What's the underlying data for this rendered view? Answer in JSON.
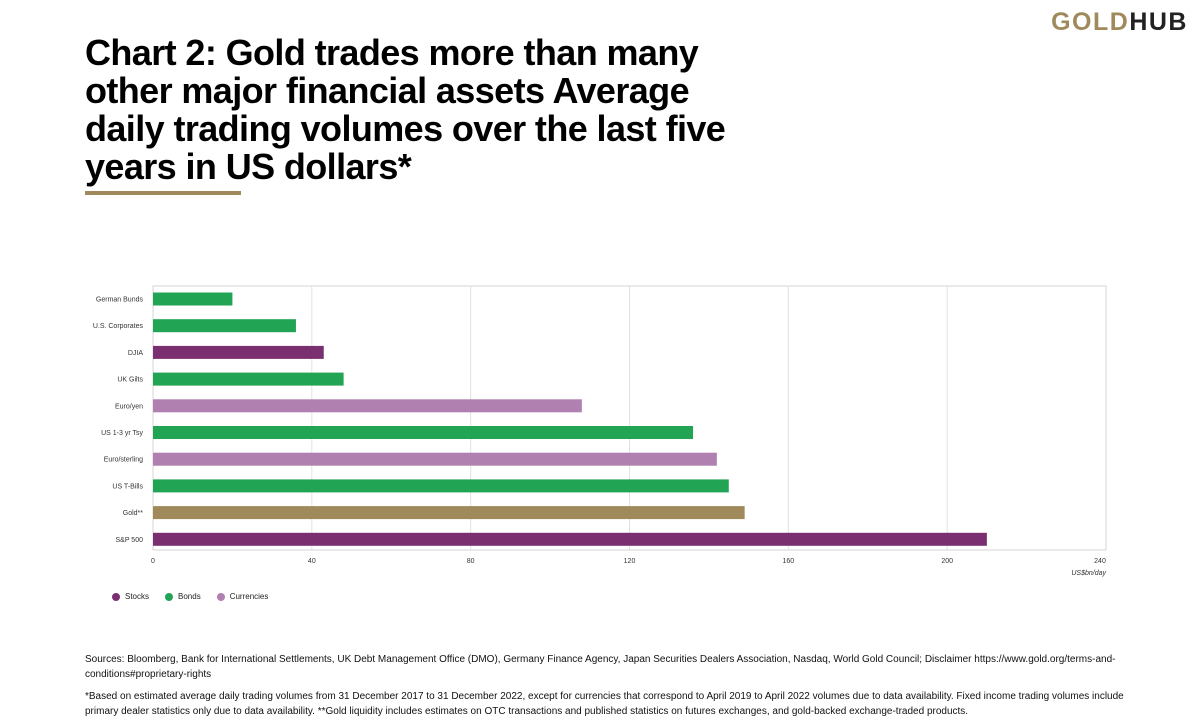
{
  "logo": {
    "gold": "GOLD",
    "hub": "HUB"
  },
  "title": "Chart 2: Gold trades more than many other major financial assets Average daily trading volumes over the last five years in US dollars*",
  "colors": {
    "Stocks": "#7a3070",
    "Bonds": "#22a455",
    "Currencies": "#b080b0",
    "Gold": "#a08a5c"
  },
  "legend": [
    {
      "label": "Stocks",
      "key": "Stocks"
    },
    {
      "label": "Bonds",
      "key": "Bonds"
    },
    {
      "label": "Currencies",
      "key": "Currencies"
    }
  ],
  "chart_data": {
    "type": "bar",
    "orientation": "horizontal",
    "categories": [
      "German Bunds",
      "U.S. Corporates",
      "DJIA",
      "UK Gilts",
      "Euro/yen",
      "US 1-3 yr Tsy",
      "Euro/sterling",
      "US T-Bills",
      "Gold**",
      "S&P 500"
    ],
    "values": [
      20,
      36,
      43,
      48,
      108,
      136,
      142,
      145,
      149,
      210
    ],
    "groups": [
      "Bonds",
      "Bonds",
      "Stocks",
      "Bonds",
      "Currencies",
      "Bonds",
      "Currencies",
      "Bonds",
      "Gold",
      "Stocks"
    ],
    "xlim": [
      0,
      240
    ],
    "xticks": [
      0,
      40,
      80,
      120,
      160,
      200,
      240
    ],
    "xlabel": "US$bn/day",
    "grid": "vertical",
    "legend_position": "bottom-left"
  },
  "sources": "Sources: Bloomberg, Bank for International Settlements, UK Debt Management Office (DMO), Germany Finance Agency, Japan Securities Dealers Association, Nasdaq, World Gold Council; Disclaimer https://www.gold.org/terms-and-conditions#proprietary-rights",
  "footnote": "*Based on estimated average daily trading volumes from 31 December 2017 to 31 December 2022, except for currencies that correspond to April 2019 to April 2022 volumes due to data availability. Fixed income trading volumes include primary dealer statistics only due to data availability. **Gold liquidity includes estimates on OTC transactions and published statistics on futures exchanges, and gold-backed exchange-traded products."
}
